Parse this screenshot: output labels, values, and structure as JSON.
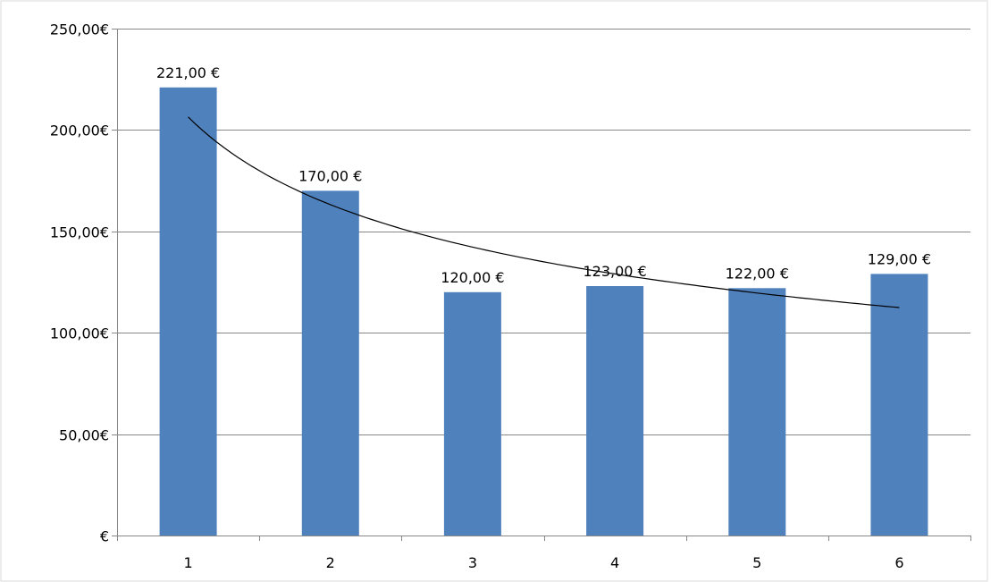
{
  "chart_data": {
    "type": "bar",
    "categories": [
      "1",
      "2",
      "3",
      "4",
      "5",
      "6"
    ],
    "series": [
      {
        "values": [
          221,
          170,
          120,
          123,
          122,
          129
        ],
        "data_labels": [
          "221,00 €",
          "170,00 €",
          "120,00 €",
          "123,00 €",
          "122,00 €",
          "129,00 €"
        ],
        "color": "#4F81BD"
      }
    ],
    "trendline": {
      "type": "power",
      "color": "#000000",
      "values": [
        208,
        162,
        141,
        129,
        120,
        113
      ]
    },
    "y_ticks": [
      {
        "value": 0,
        "label": "€"
      },
      {
        "value": 50,
        "label": "50,00€"
      },
      {
        "value": 100,
        "label": "100,00€"
      },
      {
        "value": 150,
        "label": "150,00€"
      },
      {
        "value": 200,
        "label": "200,00€"
      },
      {
        "value": 250,
        "label": "250,00€"
      }
    ],
    "ylim": [
      0,
      250
    ],
    "title": "",
    "xlabel": "",
    "ylabel": "",
    "grid": true,
    "legend": "none",
    "gridline_color": "#878787",
    "border_color": "#D9D9D9"
  }
}
